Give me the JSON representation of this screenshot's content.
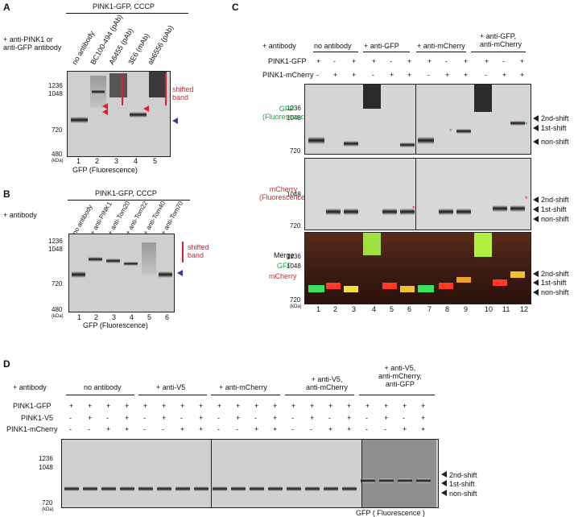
{
  "panels": {
    "A": {
      "letter": "A",
      "header": "PINK1-GFP, CCCP",
      "row_label": "+ anti-PINK1 or\nanti-GFP antibody",
      "lanes": [
        "no antibody",
        "BC100-494 (pAb)",
        "A6455 (pAb)",
        "3E6 (mAb)",
        "ab6556 (pAb)"
      ],
      "lane_numbers": [
        "1",
        "2",
        "3",
        "4",
        "5"
      ],
      "markers": [
        "1236",
        "1048",
        "720",
        "480"
      ],
      "kda": "(kDa)",
      "shifted": "shifted\nband",
      "xlabel": "GFP (Fluorescence)"
    },
    "B": {
      "letter": "B",
      "header": "PINK1-GFP, CCCP",
      "row_label": "+ antibody",
      "lanes": [
        "no antibody",
        "+ anti-PINK1",
        "+ anti-Tom20",
        "+ anti-Tom22",
        "+ anti-Tom40",
        "+ anti-Tom70"
      ],
      "lane_numbers": [
        "1",
        "2",
        "3",
        "4",
        "5",
        "6"
      ],
      "markers": [
        "1236",
        "1048",
        "720",
        "480"
      ],
      "kda": "(kDa)",
      "shifted": "shifted\nband",
      "xlabel": "GFP (Fluorescence)"
    },
    "C": {
      "letter": "C",
      "row_label": "+ antibody",
      "groups": [
        "no antibody",
        "+ anti-GFP",
        "+ anti-mCherry",
        "+ anti-GFP,\nanti-mCherry"
      ],
      "row1": "PINK1-GFP",
      "row2": "PINK1-mCherry",
      "signs1": [
        "+",
        "-",
        "+",
        "+",
        "-",
        "+",
        "+",
        "-",
        "+",
        "+",
        "-",
        "+"
      ],
      "signs2": [
        "-",
        "+",
        "+",
        "-",
        "+",
        "+",
        "-",
        "+",
        "+",
        "-",
        "+",
        "+"
      ],
      "sub1_label": "GFP\n(Fluorescence)",
      "sub2_label": "mCherry\n(Fluorescence)",
      "sub3_label1": "Merge",
      "sub3_label2": "GFP",
      "sub3_label3": "mCherry",
      "markers": [
        "1236",
        "1048",
        "720"
      ],
      "kda": "(kDa)",
      "arrows": [
        "2nd-shift",
        "1st-shift",
        "non-shift"
      ],
      "lane_numbers": [
        "1",
        "2",
        "3",
        "4",
        "5",
        "6",
        "7",
        "8",
        "9",
        "10",
        "11",
        "12"
      ]
    },
    "D": {
      "letter": "D",
      "row_label": "+ antibody",
      "groups": [
        "no antibody",
        "+ anti-V5",
        "+ anti-mCherry",
        "+ anti-V5,\nanti-mCherry",
        "+ anti-V5,\nanti-mCherry,\nanti-GFP"
      ],
      "row1": "PINK1-GFP",
      "row2": "PINK1-V5",
      "row3": "PINK1-mCherry",
      "signs1": [
        "+",
        "+",
        "+",
        "+",
        "+",
        "+",
        "+",
        "+",
        "+",
        "+",
        "+",
        "+",
        "+",
        "+",
        "+",
        "+",
        "+",
        "+",
        "+",
        "+"
      ],
      "signs2": [
        "-",
        "+",
        "-",
        "+",
        "-",
        "+",
        "-",
        "+",
        "-",
        "+",
        "-",
        "+",
        "-",
        "+",
        "-",
        "+",
        "-",
        "+",
        "-",
        "+"
      ],
      "signs3": [
        "-",
        "-",
        "+",
        "+",
        "-",
        "-",
        "+",
        "+",
        "-",
        "-",
        "+",
        "+",
        "-",
        "-",
        "+",
        "+",
        "-",
        "-",
        "+",
        "+"
      ],
      "markers": [
        "1236",
        "1048",
        "720"
      ],
      "kda": "(kDa)",
      "arrows": [
        "2nd-shift",
        "1st-shift",
        "non-shift"
      ],
      "xlabel": "GFP ( Fluorescence )"
    }
  },
  "colors": {
    "red": "#e0202a",
    "green": "#1aa048",
    "arrow_blue": "#3a3a9a"
  }
}
